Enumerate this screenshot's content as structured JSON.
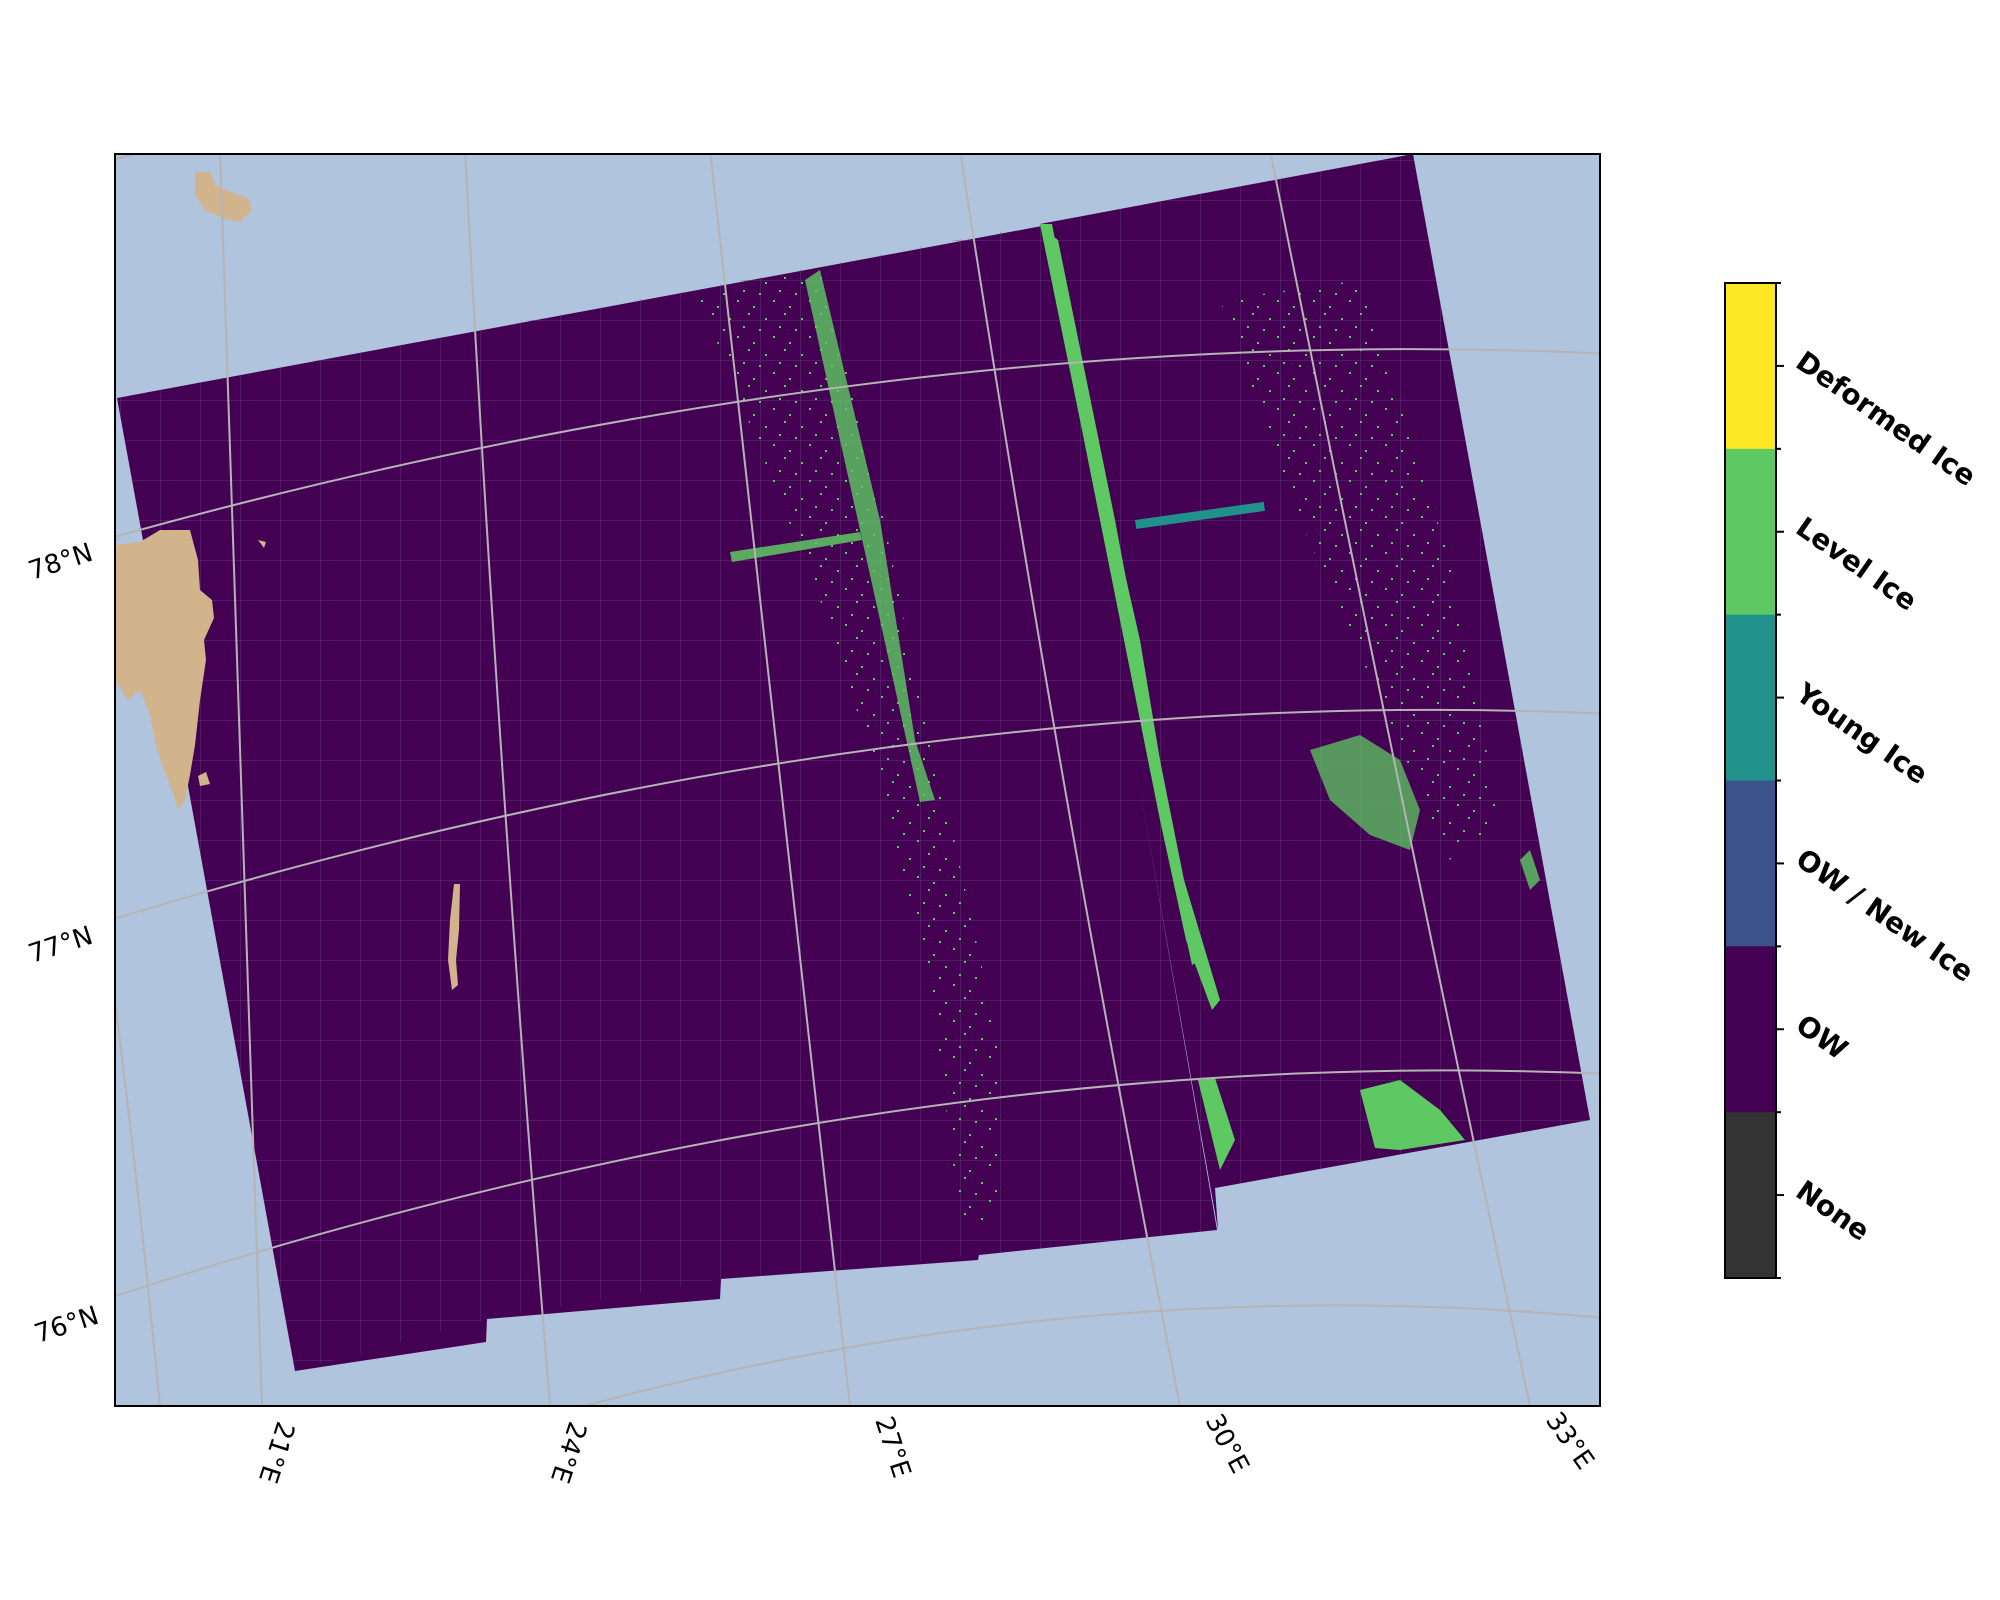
{
  "map": {
    "ocean_color": "#b0c4de",
    "land_color": "#d2b48c",
    "gridline_color": "#b4b4b4",
    "lat_labels": [
      "78°N",
      "77°N",
      "76°N"
    ],
    "lon_labels": [
      "21°E",
      "24°E",
      "27°E",
      "30°E",
      "33°E"
    ]
  },
  "legend": {
    "classes": [
      {
        "label": "Deformed Ice",
        "color": "#fde725"
      },
      {
        "label": "Level Ice",
        "color": "#5ec962"
      },
      {
        "label": "Young Ice",
        "color": "#21918c"
      },
      {
        "label": "OW / New Ice",
        "color": "#3b528b"
      },
      {
        "label": "OW",
        "color": "#440154"
      },
      {
        "label": "None",
        "color": "#333333"
      }
    ]
  }
}
